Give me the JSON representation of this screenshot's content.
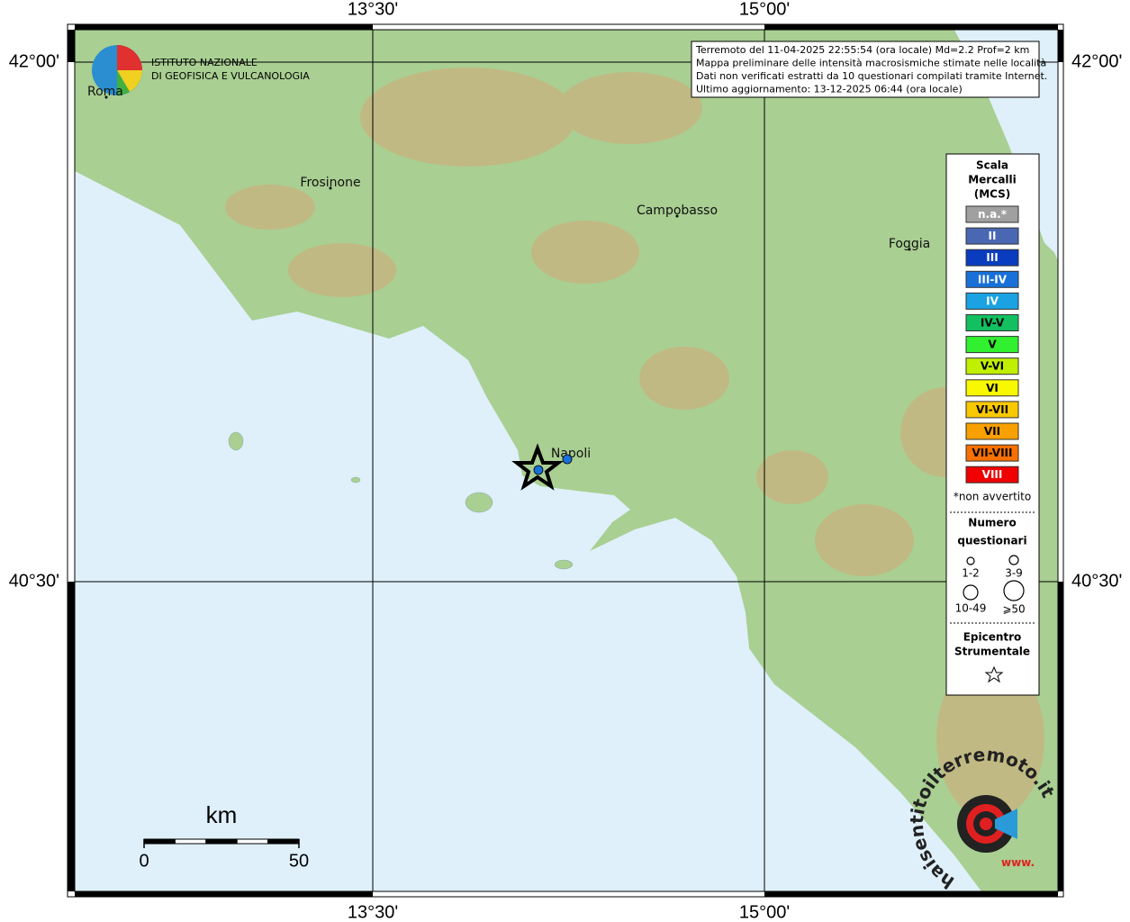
{
  "graticule": {
    "top": [
      "13°30'",
      "15°00'"
    ],
    "bottom": [
      "13°30'",
      "15°00'"
    ],
    "left": [
      "42°00'",
      "40°30'"
    ],
    "right": [
      "42°00'",
      "40°30'"
    ]
  },
  "info": [
    "Terremoto del 11-04-2025 22:55:54 (ora locale) Md=2.2 Prof=2 km",
    "Mappa preliminare delle intensità macrosismiche stimate nelle località",
    "Dati non verificati estratti da 10 questionari compilati tramite Internet.",
    "Ultimo aggiornamento: 13-12-2025 06:44 (ora locale)"
  ],
  "logo": [
    "ISTITUTO NAZIONALE",
    "DI GEOFISICA E VULCANOLOGIA"
  ],
  "cities": [
    "Roma",
    "Frosinone",
    "Campobasso",
    "Foggia",
    "Napoli"
  ],
  "legend": {
    "title": [
      "Scala",
      "Mercalli",
      "(MCS)"
    ],
    "classes": [
      {
        "label": "n.a.*",
        "color": "#a0a0a0",
        "text_color": "#ffffff"
      },
      {
        "label": "II",
        "color": "#4a67b4",
        "text_color": "#ffffff"
      },
      {
        "label": "III",
        "color": "#0a3cc0",
        "text_color": "#ffffff"
      },
      {
        "label": "III-IV",
        "color": "#1870d8",
        "text_color": "#ffffff"
      },
      {
        "label": "IV",
        "color": "#1aa2e2",
        "text_color": "#ffffff"
      },
      {
        "label": "IV-V",
        "color": "#12c060",
        "text_color": "#000000"
      },
      {
        "label": "V",
        "color": "#30f030",
        "text_color": "#000000"
      },
      {
        "label": "V-VI",
        "color": "#c0f000",
        "text_color": "#000000"
      },
      {
        "label": "VI",
        "color": "#f8f800",
        "text_color": "#000000"
      },
      {
        "label": "VI-VII",
        "color": "#f8c800",
        "text_color": "#000000"
      },
      {
        "label": "VII",
        "color": "#f8a000",
        "text_color": "#000000"
      },
      {
        "label": "VII-VIII",
        "color": "#f87000",
        "text_color": "#000000"
      },
      {
        "label": "VIII",
        "color": "#f00000",
        "text_color": "#ffffff"
      }
    ],
    "note": "*non avvertito",
    "count_title": [
      "Numero",
      "questionari"
    ],
    "counts": [
      "1-2",
      "3-9",
      "10-49",
      "⩾50"
    ],
    "epicenter_title": [
      "Epicentro",
      "Strumentale"
    ]
  },
  "scale_bar": {
    "unit": "km",
    "labels": [
      "0",
      "50"
    ]
  },
  "watermark": {
    "text": "haisentitoilterremoto.it",
    "www": "www."
  }
}
